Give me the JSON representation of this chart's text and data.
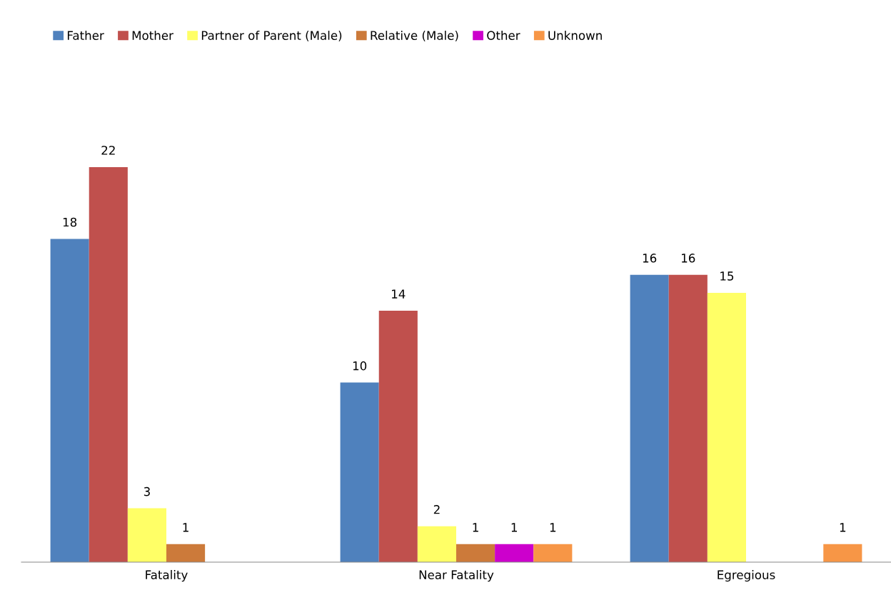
{
  "chart_data": {
    "type": "bar",
    "categories": [
      "Fatality",
      "Near Fatality",
      "Egregious"
    ],
    "series": [
      {
        "name": "Father",
        "color": "#4f81bd",
        "values": [
          18,
          10,
          16
        ]
      },
      {
        "name": "Mother",
        "color": "#c0504d",
        "values": [
          22,
          14,
          16
        ]
      },
      {
        "name": "Partner of Parent (Male)",
        "color": "#ffff66",
        "values": [
          3,
          2,
          15
        ]
      },
      {
        "name": "Relative (Male)",
        "color": "#cc7a3a",
        "values": [
          1,
          1,
          null
        ]
      },
      {
        "name": "Other",
        "color": "#cc00cc",
        "values": [
          null,
          1,
          null
        ]
      },
      {
        "name": "Unknown",
        "color": "#f79646",
        "values": [
          null,
          1,
          1
        ]
      }
    ],
    "data_labels": true,
    "legend": "top left",
    "grid": false
  }
}
